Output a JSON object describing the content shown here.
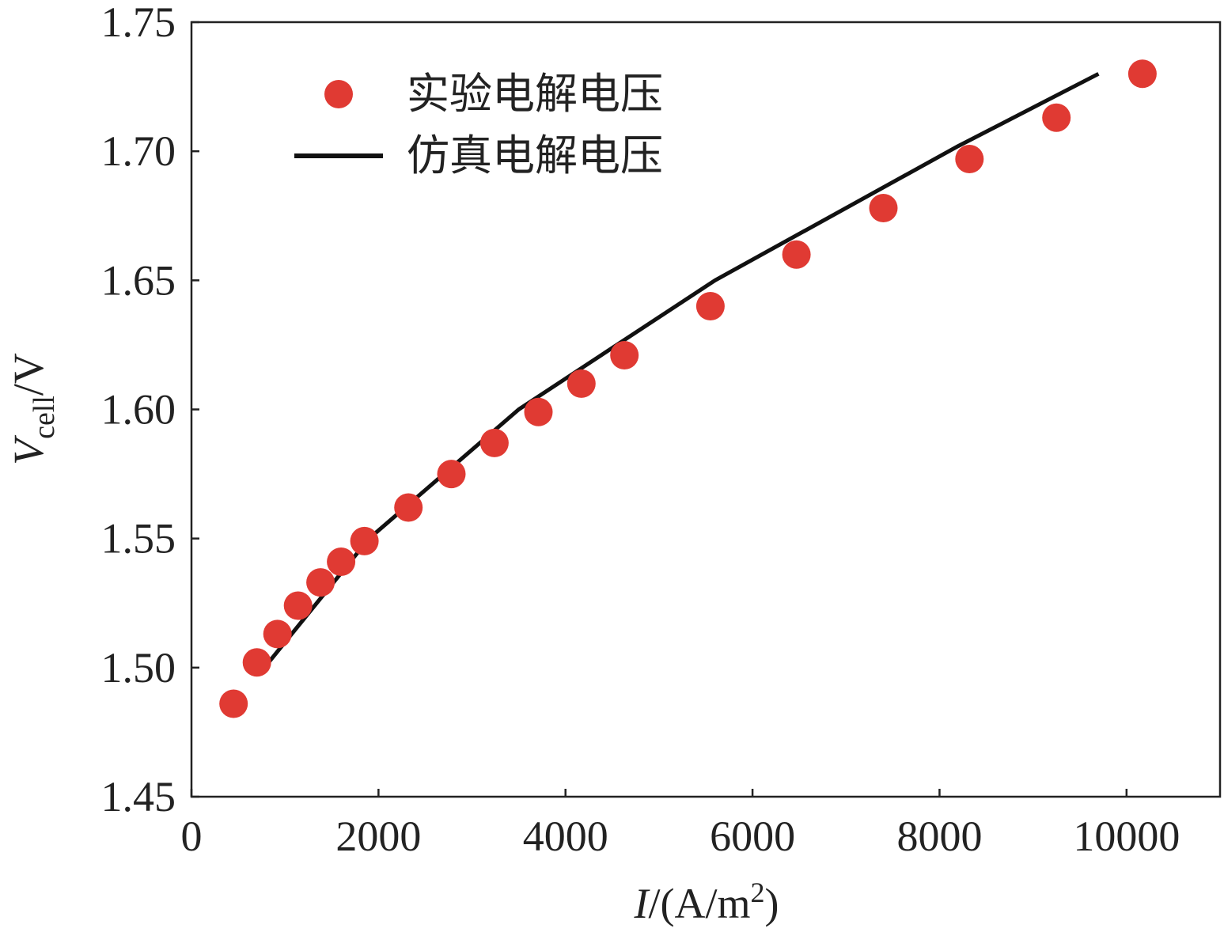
{
  "chart_data": {
    "type": "scatter",
    "xlabel": {
      "var": "I",
      "prefix": "/(A/m",
      "sup": "2",
      "suffix": ")"
    },
    "ylabel": {
      "var": "V",
      "sub": "cell",
      "suffix": "/V"
    },
    "xlim": [
      0,
      11000
    ],
    "ylim": [
      1.45,
      1.75
    ],
    "xticks": [
      0,
      2000,
      4000,
      6000,
      8000,
      10000
    ],
    "xtick_labels": [
      "0",
      "2000",
      "4000",
      "6000",
      "8000",
      "10000"
    ],
    "yticks": [
      1.45,
      1.5,
      1.55,
      1.6,
      1.65,
      1.7,
      1.75
    ],
    "ytick_labels": [
      "1.45",
      "1.50",
      "1.55",
      "1.60",
      "1.65",
      "1.70",
      "1.75"
    ],
    "grid": false,
    "legend": {
      "position": "top-left"
    },
    "series": [
      {
        "name": "实验电解电压",
        "kind": "scatter",
        "color": "#e03a33",
        "points": [
          [
            450,
            1.486
          ],
          [
            700,
            1.502
          ],
          [
            920,
            1.513
          ],
          [
            1140,
            1.524
          ],
          [
            1380,
            1.533
          ],
          [
            1600,
            1.541
          ],
          [
            1850,
            1.549
          ],
          [
            2320,
            1.562
          ],
          [
            2780,
            1.575
          ],
          [
            3240,
            1.587
          ],
          [
            3710,
            1.599
          ],
          [
            4170,
            1.61
          ],
          [
            4630,
            1.621
          ],
          [
            5550,
            1.64
          ],
          [
            6470,
            1.66
          ],
          [
            7400,
            1.678
          ],
          [
            8320,
            1.697
          ],
          [
            9250,
            1.713
          ],
          [
            10170,
            1.73
          ]
        ]
      },
      {
        "name": "仿真电解电压",
        "kind": "line",
        "color": "#111111",
        "points": [
          [
            780,
            1.5
          ],
          [
            1900,
            1.55
          ],
          [
            3500,
            1.6
          ],
          [
            5600,
            1.65
          ],
          [
            8200,
            1.702
          ],
          [
            9700,
            1.73
          ]
        ]
      }
    ]
  }
}
